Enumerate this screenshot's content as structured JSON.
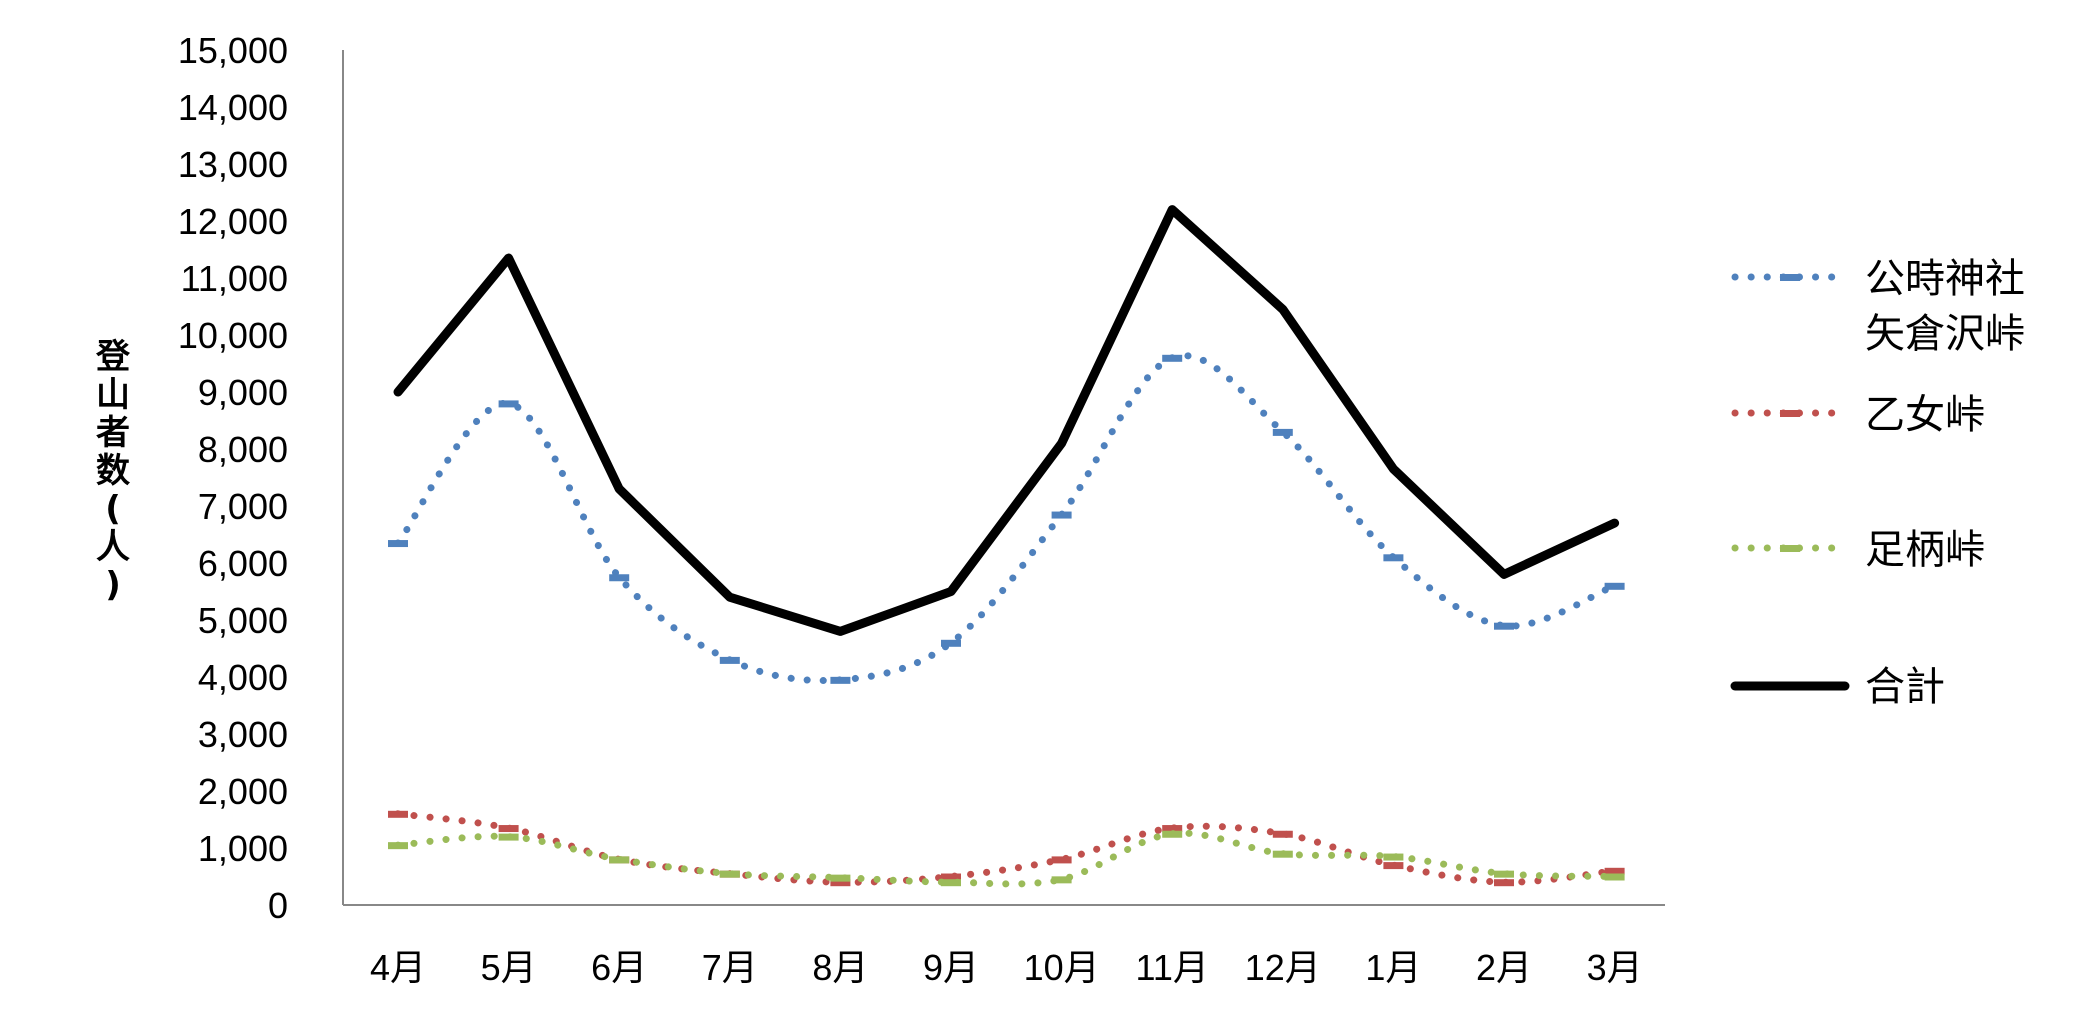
{
  "chart_data": {
    "type": "line",
    "title": "",
    "xlabel": "",
    "ylabel": "登山者数(人)",
    "ylabel_chars": [
      "登",
      "山",
      "者",
      "数",
      "(",
      "人",
      ")"
    ],
    "categories": [
      "4月",
      "5月",
      "6月",
      "7月",
      "8月",
      "9月",
      "10月",
      "11月",
      "12月",
      "1月",
      "2月",
      "3月"
    ],
    "ylim": [
      0,
      15000
    ],
    "yticks": [
      0,
      1000,
      2000,
      3000,
      4000,
      5000,
      6000,
      7000,
      8000,
      9000,
      10000,
      11000,
      12000,
      13000,
      14000,
      15000
    ],
    "ytick_labels": [
      "0",
      "1,000",
      "2,000",
      "3,000",
      "4,000",
      "5,000",
      "6,000",
      "7,000",
      "8,000",
      "9,000",
      "10,000",
      "11,000",
      "12,000",
      "13,000",
      "14,000",
      "15,000"
    ],
    "grid": false,
    "legend_position": "right",
    "series": [
      {
        "name": "公時神社 矢倉沢峠",
        "legend_lines": [
          "公時神社",
          "矢倉沢峠"
        ],
        "style": "dotted",
        "color": "#4F81BD",
        "values": [
          6350,
          8800,
          5750,
          4300,
          3950,
          4600,
          6850,
          9600,
          8300,
          6100,
          4900,
          5600
        ]
      },
      {
        "name": "乙女峠",
        "legend_lines": [
          "乙女峠"
        ],
        "style": "dotted",
        "color": "#C0504D",
        "values": [
          1600,
          1350,
          800,
          550,
          400,
          500,
          800,
          1350,
          1250,
          700,
          400,
          600
        ]
      },
      {
        "name": "足柄峠",
        "legend_lines": [
          "足柄峠"
        ],
        "style": "dotted",
        "color": "#9BBB59",
        "values": [
          1050,
          1200,
          800,
          550,
          480,
          400,
          450,
          1250,
          900,
          850,
          550,
          500
        ]
      },
      {
        "name": "合計",
        "legend_lines": [
          "合計"
        ],
        "style": "solid",
        "color": "#000000",
        "values": [
          9000,
          11350,
          7300,
          5400,
          4800,
          5500,
          8100,
          12200,
          10450,
          7650,
          5800,
          6700
        ]
      }
    ]
  }
}
